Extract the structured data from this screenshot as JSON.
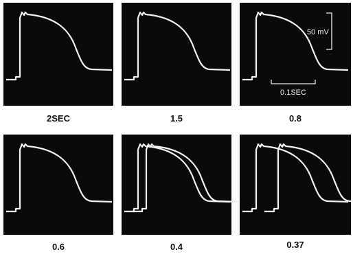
{
  "panels": [
    {
      "label": "2SEC"
    },
    {
      "label": "1.5"
    },
    {
      "label": "0.8"
    },
    {
      "label": "0.6"
    },
    {
      "label": "0.4"
    },
    {
      "label": "0.37"
    }
  ],
  "scale": {
    "voltage": "50 mV",
    "time": "0.1SEC"
  }
}
